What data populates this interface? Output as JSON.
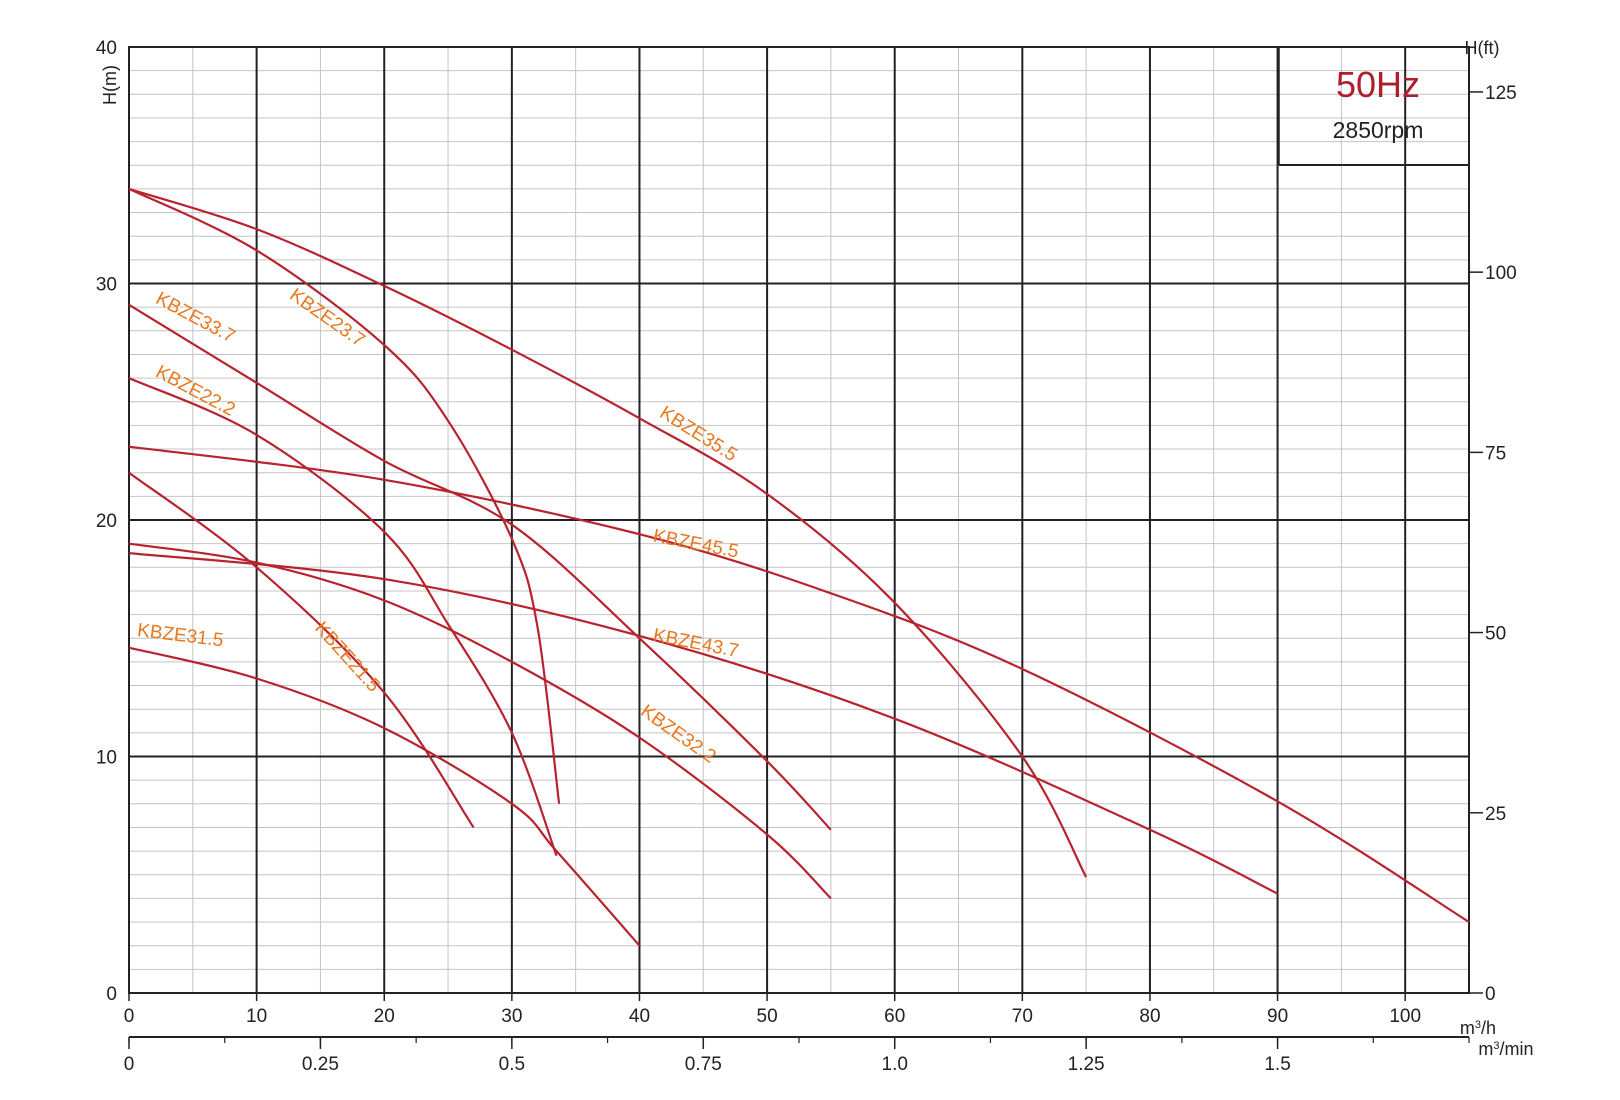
{
  "chart_data": {
    "type": "line",
    "badge": {
      "frequency": "50Hz",
      "speed": "2850rpm"
    },
    "axes": {
      "y_left": {
        "label": "H(m)",
        "range": [
          0,
          40
        ],
        "ticks": [
          0,
          10,
          20,
          30,
          40
        ]
      },
      "y_right": {
        "label": "H(ft)",
        "ticks": [
          0,
          25,
          50,
          75,
          100,
          125
        ]
      },
      "x_flow_h": {
        "unit": "m3/h",
        "range": [
          0,
          105
        ],
        "ticks": [
          0,
          10,
          20,
          30,
          40,
          50,
          60,
          70,
          80,
          90,
          100
        ]
      },
      "x_flow_min": {
        "unit": "m3/min",
        "ticks": [
          "0",
          "0.25",
          "0.5",
          "0.75",
          "1.0",
          "1.25",
          "1.5"
        ]
      }
    },
    "grid": true,
    "series": [
      {
        "name": "KBZE23.7",
        "points": [
          [
            0,
            34
          ],
          [
            10,
            31.4
          ],
          [
            20,
            27.4
          ],
          [
            25,
            24.2
          ],
          [
            30,
            19.2
          ],
          [
            32,
            15.5
          ],
          [
            33.7,
            8
          ]
        ]
      },
      {
        "name": "KBZE33.7",
        "points": [
          [
            0,
            29.1
          ],
          [
            10,
            25.8
          ],
          [
            20,
            22.5
          ],
          [
            30,
            19.8
          ],
          [
            40,
            15
          ],
          [
            50,
            9.8
          ],
          [
            55,
            6.9
          ]
        ]
      },
      {
        "name": "KBZE22.2",
        "points": [
          [
            0,
            26
          ],
          [
            10,
            23.6
          ],
          [
            20,
            19.5
          ],
          [
            25,
            15.6
          ],
          [
            30,
            11
          ],
          [
            33.5,
            5.8
          ]
        ]
      },
      {
        "name": "KBZE35.5",
        "points": [
          [
            0,
            34
          ],
          [
            10,
            32.3
          ],
          [
            20,
            29.9
          ],
          [
            30,
            27.2
          ],
          [
            40,
            24.3
          ],
          [
            50,
            21.1
          ],
          [
            60,
            16.5
          ],
          [
            70,
            10
          ],
          [
            75,
            4.9
          ]
        ]
      },
      {
        "name": "KBZE45.5",
        "points": [
          [
            0,
            23.1
          ],
          [
            20,
            21.7
          ],
          [
            40,
            19.4
          ],
          [
            55,
            16.9
          ],
          [
            70,
            13.7
          ],
          [
            90,
            8.1
          ],
          [
            105,
            3
          ]
        ]
      },
      {
        "name": "KBZE43.7",
        "points": [
          [
            0,
            18.6
          ],
          [
            20,
            17.5
          ],
          [
            40,
            15.1
          ],
          [
            60,
            11.6
          ],
          [
            80,
            6.9
          ],
          [
            90,
            4.2
          ]
        ]
      },
      {
        "name": "KBZE21.5",
        "points": [
          [
            0,
            22
          ],
          [
            10,
            18
          ],
          [
            20,
            12.7
          ],
          [
            27,
            7
          ]
        ]
      },
      {
        "name": "KBZE32.2",
        "points": [
          [
            0,
            19
          ],
          [
            10,
            18.2
          ],
          [
            20,
            16.6
          ],
          [
            30,
            14
          ],
          [
            40,
            10.8
          ],
          [
            50,
            6.7
          ],
          [
            55,
            4
          ]
        ]
      },
      {
        "name": "KBZE31.5",
        "points": [
          [
            0,
            14.6
          ],
          [
            10,
            13.3
          ],
          [
            20,
            11.2
          ],
          [
            30,
            8
          ],
          [
            33.5,
            6
          ],
          [
            40,
            2
          ]
        ]
      }
    ]
  }
}
